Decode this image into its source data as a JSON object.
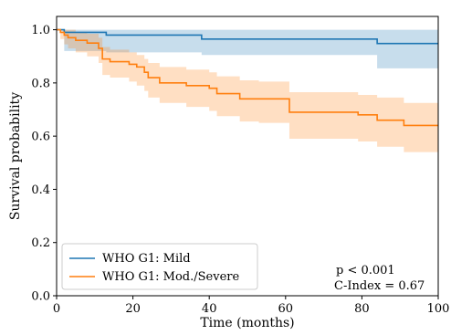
{
  "chart_data": {
    "type": "line",
    "xlabel": "Time (months)",
    "ylabel": "Survival probability",
    "xlim": [
      0,
      100
    ],
    "ylim": [
      0,
      1.05
    ],
    "x_ticks": [
      0,
      20,
      40,
      60,
      80,
      100
    ],
    "y_ticks": [
      0.0,
      0.2,
      0.4,
      0.6,
      0.8,
      1.0
    ],
    "x_tick_labels": [
      "0",
      "20",
      "40",
      "60",
      "80",
      "100"
    ],
    "y_tick_labels": [
      "0.0",
      "0.2",
      "0.4",
      "0.6",
      "0.8",
      "1.0"
    ],
    "grid": false,
    "legend_position": "bottom-left",
    "annotations": [
      "p < 0.001",
      "C-Index = 0.67"
    ],
    "series": [
      {
        "name": "WHO G1: Mild",
        "color": "#1f77b4",
        "step_x": [
          0,
          2,
          13,
          38,
          84,
          100
        ],
        "step_y": [
          1.0,
          0.99,
          0.98,
          0.965,
          0.948,
          0.948
        ],
        "ci_lower": [
          1.0,
          0.92,
          0.915,
          0.905,
          0.855,
          0.855
        ],
        "ci_upper": [
          1.0,
          1.0,
          1.0,
          1.0,
          1.0,
          1.0
        ]
      },
      {
        "name": "WHO G1: Mod./Severe",
        "color": "#ff7f0e",
        "step_x": [
          0,
          1,
          2,
          3,
          5,
          8,
          11,
          12,
          14,
          19,
          21,
          23,
          24,
          27,
          34,
          40,
          42,
          48,
          53,
          61,
          79,
          84,
          91,
          100
        ],
        "step_y": [
          1.0,
          0.99,
          0.98,
          0.97,
          0.96,
          0.95,
          0.93,
          0.89,
          0.88,
          0.87,
          0.86,
          0.84,
          0.82,
          0.8,
          0.79,
          0.78,
          0.76,
          0.74,
          0.74,
          0.69,
          0.68,
          0.66,
          0.64,
          0.64
        ],
        "ci_lower": [
          1.0,
          0.965,
          0.945,
          0.93,
          0.915,
          0.9,
          0.875,
          0.83,
          0.82,
          0.805,
          0.79,
          0.77,
          0.745,
          0.725,
          0.71,
          0.695,
          0.675,
          0.655,
          0.65,
          0.59,
          0.58,
          0.56,
          0.54,
          0.54
        ],
        "ci_upper": [
          1.0,
          1.0,
          1.0,
          1.0,
          0.99,
          0.985,
          0.97,
          0.935,
          0.925,
          0.915,
          0.905,
          0.89,
          0.875,
          0.86,
          0.85,
          0.84,
          0.825,
          0.81,
          0.805,
          0.765,
          0.755,
          0.745,
          0.725,
          0.715
        ]
      }
    ]
  }
}
